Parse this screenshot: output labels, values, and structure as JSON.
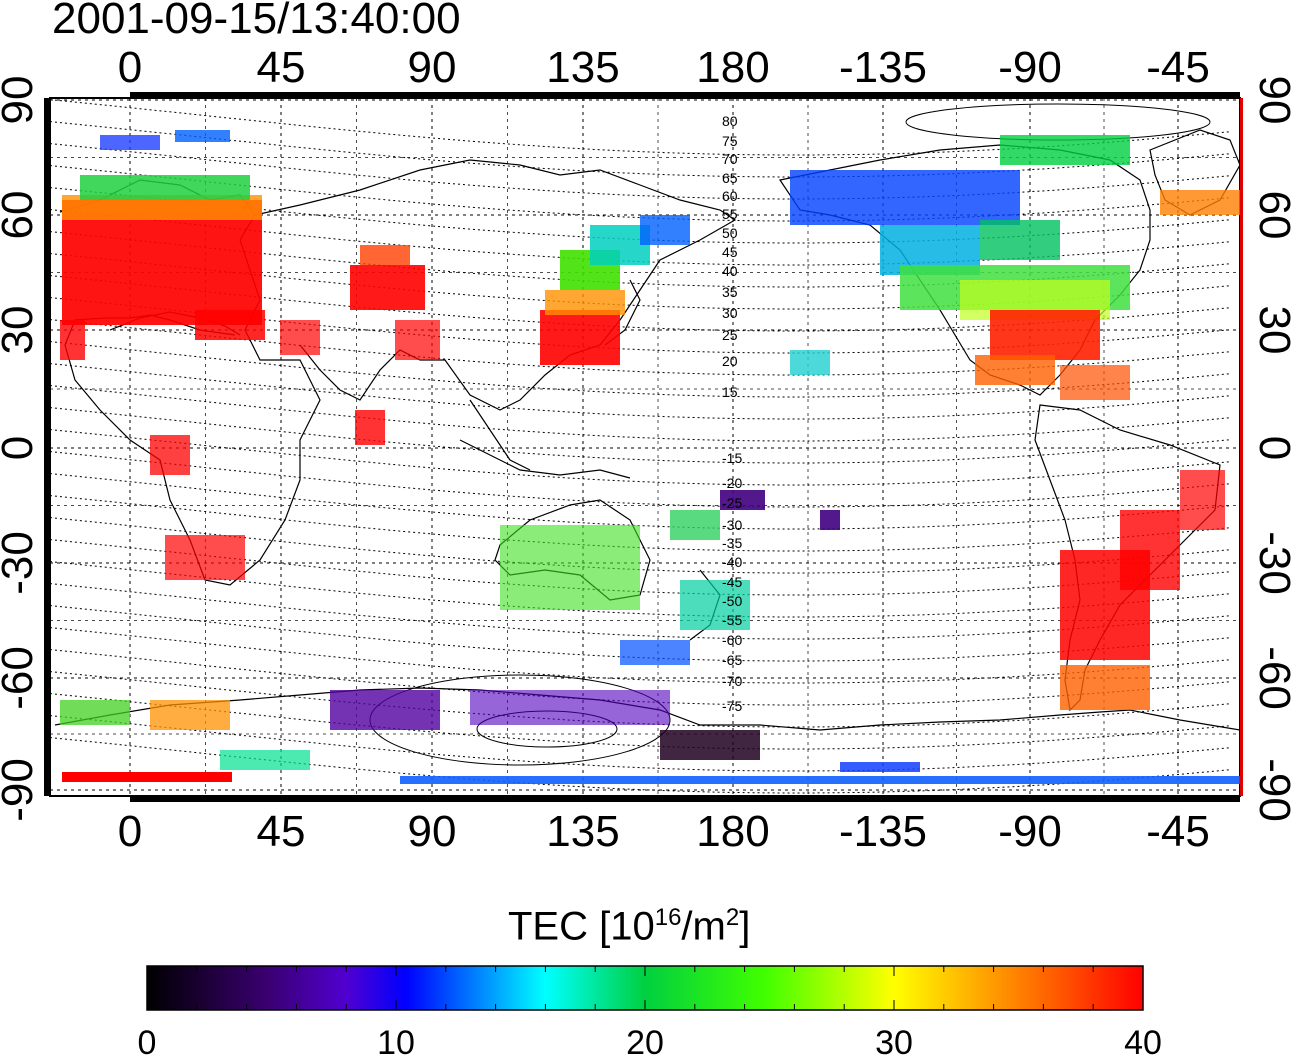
{
  "title": "2001-09-15/13:40:00",
  "map": {
    "lon_ticks": [
      "0",
      "45",
      "90",
      "135",
      "180",
      "-135",
      "-90",
      "-45"
    ],
    "lat_ticks": [
      "90",
      "60",
      "30",
      "0",
      "-30",
      "-60",
      "-90"
    ],
    "contour_labels": [
      "80",
      "75",
      "70",
      "65",
      "60",
      "55",
      "50",
      "45",
      "40",
      "35",
      "30",
      "25",
      "20",
      "15",
      "-15",
      "-20",
      "-25",
      "-30",
      "-35",
      "-40",
      "-45",
      "-50",
      "-55",
      "-60",
      "-65",
      "-70",
      "-75"
    ]
  },
  "colorbar": {
    "label_main": "TEC  [10",
    "label_sup1": "16",
    "label_mid": "/m",
    "label_sup2": "2",
    "label_end": "]",
    "ticks": [
      "0",
      "10",
      "20",
      "30",
      "40"
    ],
    "range": [
      0,
      40
    ],
    "colors": [
      "#000000",
      "#3a0070",
      "#5a00c8",
      "#0000ff",
      "#0090ff",
      "#00ffff",
      "#00d040",
      "#00ff00",
      "#ffff00",
      "#ff9000",
      "#ff0000"
    ]
  }
}
